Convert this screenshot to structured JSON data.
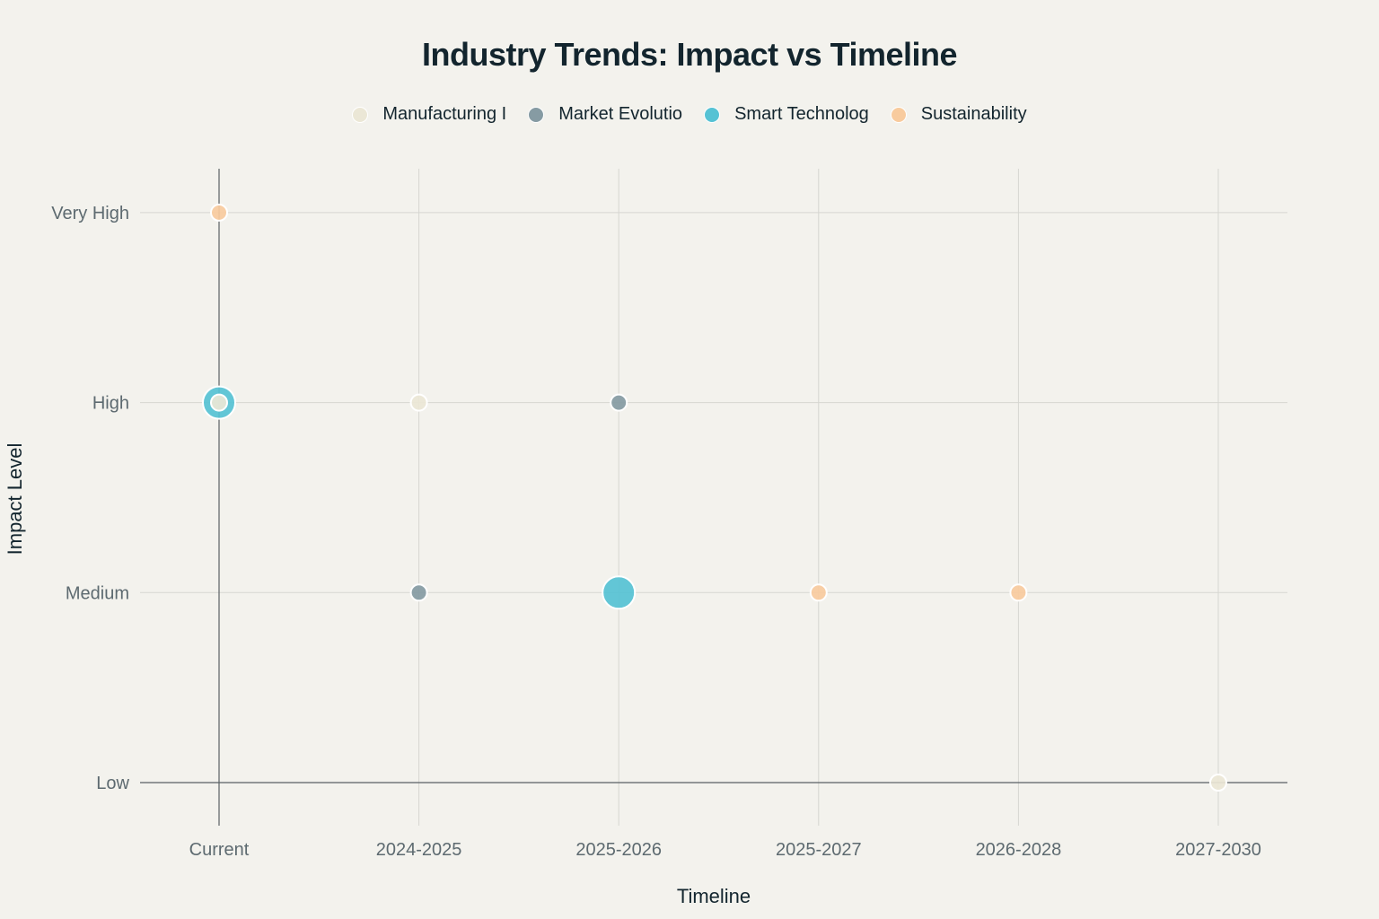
{
  "chart_data": {
    "type": "scatter",
    "title": "Industry Trends: Impact vs Timeline",
    "xlabel": "Timeline",
    "ylabel": "Impact Level",
    "x_categories": [
      "Current",
      "2024-2025",
      "2025-2026",
      "2025-2027",
      "2026-2028",
      "2027-2030"
    ],
    "y_categories": [
      "Low",
      "Medium",
      "High",
      "Very High"
    ],
    "grid": true,
    "legend_position": "top",
    "series": [
      {
        "name": "Manufacturing I",
        "color": "#ebe7d6",
        "points": [
          {
            "x": "Current",
            "y": "High",
            "size": 1
          },
          {
            "x": "2024-2025",
            "y": "High",
            "size": 1
          },
          {
            "x": "2027-2030",
            "y": "Low",
            "size": 1
          }
        ]
      },
      {
        "name": "Market Evolutio",
        "color": "#869ba3",
        "points": [
          {
            "x": "2024-2025",
            "y": "Medium",
            "size": 1
          },
          {
            "x": "2025-2026",
            "y": "High",
            "size": 1
          }
        ]
      },
      {
        "name": "Smart Technolog",
        "color": "#56c2d4",
        "points": [
          {
            "x": "Current",
            "y": "High",
            "size": 2
          },
          {
            "x": "2025-2026",
            "y": "Medium",
            "size": 2
          }
        ]
      },
      {
        "name": "Sustainability",
        "color": "#f8cb9e",
        "points": [
          {
            "x": "Current",
            "y": "Very High",
            "size": 1
          },
          {
            "x": "2025-2027",
            "y": "Medium",
            "size": 1
          },
          {
            "x": "2026-2028",
            "y": "Medium",
            "size": 1
          }
        ]
      }
    ]
  }
}
